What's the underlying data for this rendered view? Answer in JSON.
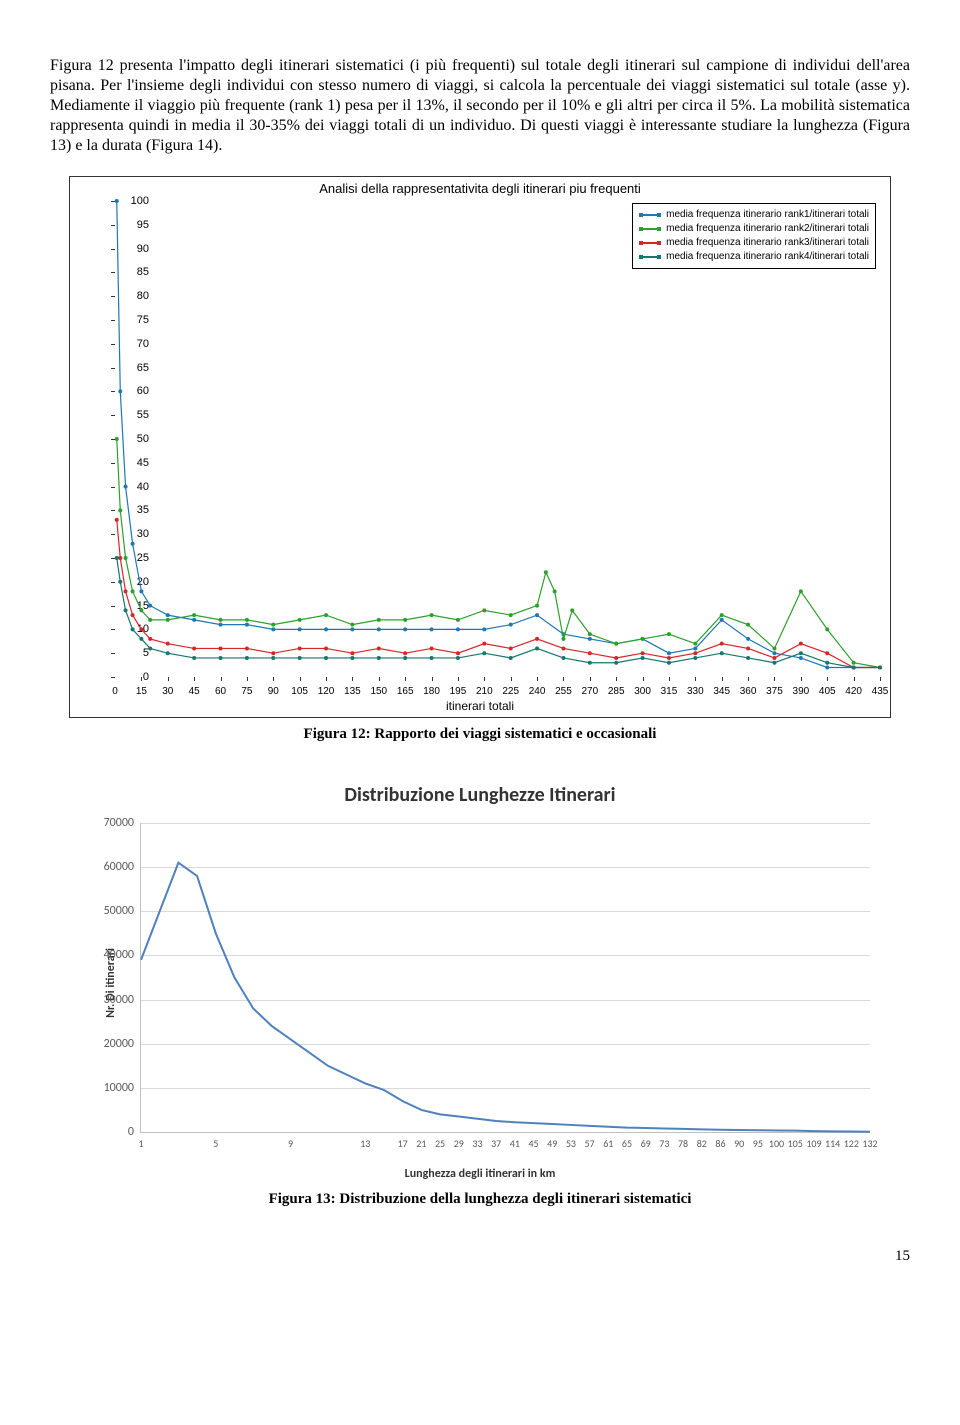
{
  "paragraph": "Figura 12 presenta l'impatto degli itinerari sistematici (i più frequenti) sul totale degli itinerari sul campione di individui dell'area pisana. Per l'insieme degli individui con stesso numero di viaggi, si calcola la percentuale dei viaggi sistematici sul totale (asse y). Mediamente il viaggio più frequente (rank 1) pesa per il 13%, il secondo per il 10% e gli altri per circa il 5%. La mobilità sistematica rappresenta quindi in media il 30-35% dei viaggi totali di un individuo. Di questi viaggi è interessante studiare la lunghezza (Figura 13) e la durata (Figura 14).",
  "figure12": {
    "caption": "Figura 12: Rapporto dei viaggi sistematici e occasionali",
    "chart": {
      "type": "line-scatter",
      "title": "Analisi della rappresentativita degli itinerari piu frequenti",
      "xlabel": "itinerari totali",
      "xlim": [
        0,
        435
      ],
      "xtick_step": 15,
      "ylim": [
        0,
        100
      ],
      "ytick_step": 5,
      "background_color": "#ffffff",
      "border_color": "#333333",
      "marker_size": 2,
      "legend": {
        "position": "upper-right",
        "items": [
          {
            "label": "media frequenza itinerario rank1/itinerari totali",
            "color": "#1f77b4"
          },
          {
            "label": "media frequenza itinerario rank2/itinerari totali",
            "color": "#2ca02c"
          },
          {
            "label": "media frequenza itinerario rank3/itinerari totali",
            "color": "#d62728"
          },
          {
            "label": "media frequenza itinerario rank4/itinerari totali",
            "color": "#17766e"
          }
        ]
      },
      "series": [
        {
          "name": "rank1",
          "color": "#1f77b4",
          "x": [
            1,
            3,
            6,
            10,
            15,
            20,
            30,
            45,
            60,
            75,
            90,
            105,
            120,
            135,
            150,
            165,
            180,
            195,
            210,
            225,
            240,
            255,
            270,
            285,
            300,
            315,
            330,
            345,
            360,
            375,
            390,
            405,
            420,
            435
          ],
          "y": [
            100,
            60,
            40,
            28,
            18,
            15,
            13,
            12,
            11,
            11,
            10,
            10,
            10,
            10,
            10,
            10,
            10,
            10,
            10,
            11,
            13,
            9,
            8,
            7,
            8,
            5,
            6,
            12,
            8,
            5,
            4,
            2,
            2,
            2
          ]
        },
        {
          "name": "rank2",
          "color": "#2ca02c",
          "x": [
            1,
            3,
            6,
            10,
            15,
            20,
            30,
            45,
            60,
            75,
            90,
            105,
            120,
            135,
            150,
            165,
            180,
            195,
            210,
            225,
            240,
            245,
            250,
            255,
            260,
            270,
            285,
            300,
            315,
            330,
            345,
            360,
            375,
            390,
            405,
            420,
            435
          ],
          "y": [
            50,
            35,
            25,
            18,
            14,
            12,
            12,
            13,
            12,
            12,
            11,
            12,
            13,
            11,
            12,
            12,
            13,
            12,
            14,
            13,
            15,
            22,
            18,
            8,
            14,
            9,
            7,
            8,
            9,
            7,
            13,
            11,
            6,
            18,
            10,
            3,
            2
          ]
        },
        {
          "name": "rank3",
          "color": "#d62728",
          "x": [
            1,
            3,
            6,
            10,
            15,
            20,
            30,
            45,
            60,
            75,
            90,
            105,
            120,
            135,
            150,
            165,
            180,
            195,
            210,
            225,
            240,
            255,
            270,
            285,
            300,
            315,
            330,
            345,
            360,
            375,
            390,
            405,
            420,
            435
          ],
          "y": [
            33,
            25,
            18,
            13,
            10,
            8,
            7,
            6,
            6,
            6,
            5,
            6,
            6,
            5,
            6,
            5,
            6,
            5,
            7,
            6,
            8,
            6,
            5,
            4,
            5,
            4,
            5,
            7,
            6,
            4,
            7,
            5,
            2,
            2
          ]
        },
        {
          "name": "rank4",
          "color": "#17766e",
          "x": [
            1,
            3,
            6,
            10,
            15,
            20,
            30,
            45,
            60,
            75,
            90,
            105,
            120,
            135,
            150,
            165,
            180,
            195,
            210,
            225,
            240,
            255,
            270,
            285,
            300,
            315,
            330,
            345,
            360,
            375,
            390,
            405,
            420,
            435
          ],
          "y": [
            25,
            20,
            14,
            10,
            8,
            6,
            5,
            4,
            4,
            4,
            4,
            4,
            4,
            4,
            4,
            4,
            4,
            4,
            5,
            4,
            6,
            4,
            3,
            3,
            4,
            3,
            4,
            5,
            4,
            3,
            5,
            3,
            2,
            2
          ]
        }
      ]
    }
  },
  "figure13": {
    "caption": "Figura 13: Distribuzione della lunghezza degli itinerari sistematici",
    "chart": {
      "type": "line",
      "title": "Distribuzione Lunghezze Itinerari",
      "ylabel": "Nr. Di itinerari",
      "xlabel": "Lunghezza degli itinerari in km",
      "ylim": [
        0,
        70000
      ],
      "ytick_step": 10000,
      "xticks": [
        1,
        5,
        9,
        13,
        17,
        21,
        25,
        29,
        33,
        37,
        41,
        45,
        49,
        53,
        57,
        61,
        65,
        69,
        73,
        78,
        82,
        86,
        90,
        95,
        100,
        105,
        109,
        114,
        122,
        132
      ],
      "grid_color": "#d9d9d9",
      "line_color": "#4f81bd",
      "line_width": 2,
      "background_color": "#ffffff",
      "axis_color": "#bfbfbf",
      "tick_font_color": "#595959",
      "x": [
        1,
        2,
        3,
        4,
        5,
        6,
        7,
        8,
        9,
        10,
        11,
        12,
        13,
        14,
        17,
        21,
        25,
        29,
        33,
        37,
        41,
        45,
        49,
        53,
        57,
        61,
        65,
        69,
        73,
        78,
        82,
        86,
        90,
        95,
        100,
        105,
        109,
        114,
        122,
        132
      ],
      "y": [
        39000,
        50000,
        61000,
        58000,
        45000,
        35000,
        28000,
        24000,
        21000,
        18000,
        15000,
        13000,
        11000,
        9500,
        7000,
        5000,
        4000,
        3500,
        3000,
        2500,
        2200,
        2000,
        1800,
        1600,
        1400,
        1200,
        1000,
        900,
        800,
        700,
        600,
        500,
        450,
        400,
        350,
        300,
        200,
        150,
        100,
        50
      ]
    }
  },
  "page_number": "15"
}
